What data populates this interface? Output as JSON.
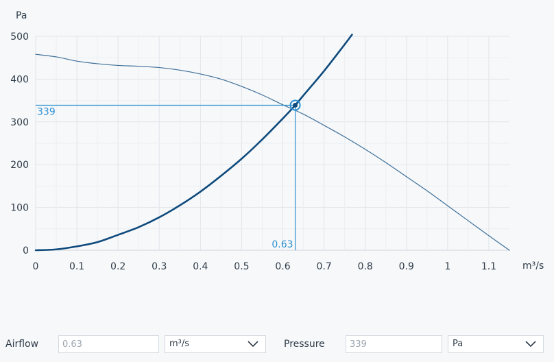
{
  "chart_data": {
    "type": "line",
    "y_unit_label": "Pa",
    "x_unit_label": "m³/s",
    "xlim": [
      0,
      1.15
    ],
    "ylim": [
      0,
      500
    ],
    "x_ticks": [
      "0",
      "0.1",
      "0.2",
      "0.3",
      "0.4",
      "0.5",
      "0.6",
      "0.7",
      "0.8",
      "0.9",
      "1",
      "1.1"
    ],
    "y_ticks": [
      "0",
      "100",
      "200",
      "300",
      "400",
      "500"
    ],
    "grid": true,
    "series": [
      {
        "role": "fan-curve",
        "x": [
          0,
          0.05,
          0.1,
          0.15,
          0.2,
          0.25,
          0.3,
          0.35,
          0.4,
          0.45,
          0.5,
          0.55,
          0.6,
          0.65,
          0.7,
          0.75,
          0.8,
          0.85,
          0.9,
          0.95,
          1.0,
          1.05,
          1.1,
          1.15
        ],
        "y": [
          458,
          452,
          442,
          436,
          432,
          430,
          427,
          421,
          412,
          400,
          383,
          363,
          340,
          318,
          292,
          265,
          236,
          205,
          172,
          139,
          104,
          69,
          34,
          0
        ]
      },
      {
        "role": "system-curve",
        "x": [
          0,
          0.05,
          0.1,
          0.15,
          0.2,
          0.25,
          0.3,
          0.35,
          0.4,
          0.45,
          0.5,
          0.55,
          0.6,
          0.63,
          0.65,
          0.7,
          0.75,
          0.768
        ],
        "y": [
          0,
          2,
          9,
          19,
          36,
          54,
          77,
          105,
          137,
          174,
          214,
          259,
          308,
          339,
          362,
          419,
          481,
          504
        ]
      }
    ],
    "operating_point": {
      "x": 0.63,
      "y": 339,
      "x_label": "0.63",
      "y_label": "339"
    },
    "colors": {
      "fan": "#3f6f98",
      "system": "#0e4a7c",
      "operating": "#2b8fd0",
      "grid": "#e1e5ea",
      "axis": "#cfd5db",
      "text": "#2f3c48"
    }
  },
  "controls": {
    "airflow_label": "Airflow",
    "airflow_value": "0.63",
    "airflow_unit": "m³/s",
    "pressure_label": "Pressure",
    "pressure_value": "339",
    "pressure_unit": "Pa"
  }
}
